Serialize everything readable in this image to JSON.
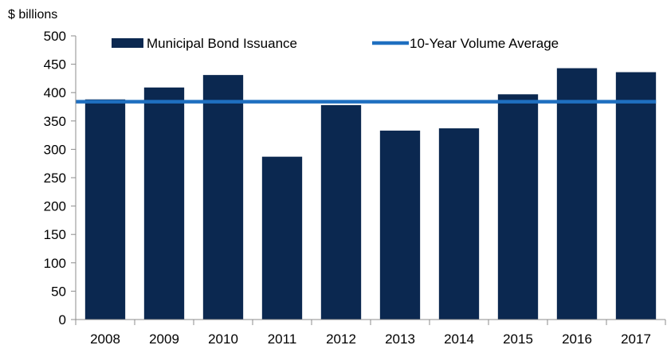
{
  "chart_data": {
    "type": "bar",
    "title": "",
    "ylabel": "$ billions",
    "xlabel": "",
    "categories": [
      "2008",
      "2009",
      "2010",
      "2011",
      "2012",
      "2013",
      "2014",
      "2015",
      "2016",
      "2017"
    ],
    "series": [
      {
        "name": "Municipal Bond Issuance",
        "type": "bar",
        "color": "#0b2850",
        "values": [
          388,
          409,
          431,
          287,
          378,
          333,
          337,
          397,
          443,
          436
        ]
      },
      {
        "name": "10-Year Volume Average",
        "type": "line",
        "color": "#1f6fc0",
        "values": [
          384,
          384,
          384,
          384,
          384,
          384,
          384,
          384,
          384,
          384
        ]
      }
    ],
    "ylim": [
      0,
      500
    ],
    "yticks": [
      "0",
      "50",
      "100",
      "150",
      "200",
      "250",
      "300",
      "350",
      "400",
      "450",
      "500"
    ],
    "grid": false,
    "legend_position": "top"
  }
}
